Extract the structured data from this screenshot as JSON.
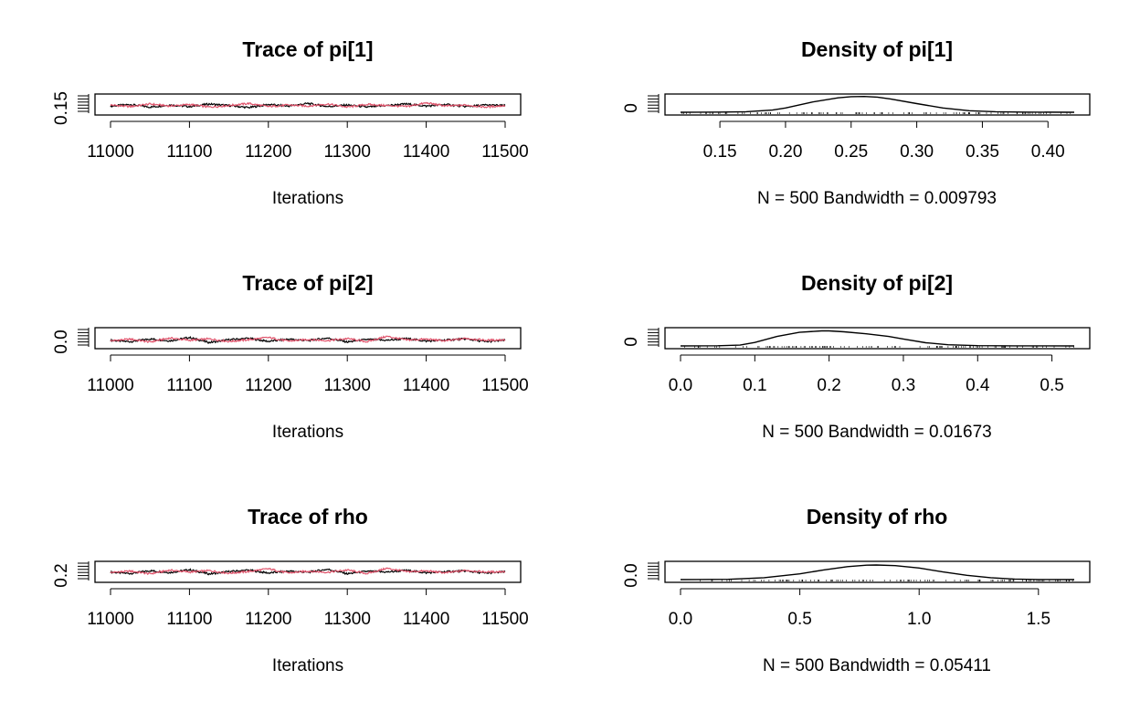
{
  "chart_data": [
    {
      "type": "line",
      "title": "Trace of pi[1]",
      "xlabel": "Iterations",
      "x_ticks": [
        "11000",
        "11100",
        "11200",
        "11300",
        "11400",
        "11500"
      ],
      "xlim": [
        11000,
        11500
      ],
      "y_ticks": [
        "0.15"
      ],
      "ylim": [
        0.12,
        0.42
      ],
      "series_colors": [
        "#000000",
        "#DF536B"
      ],
      "series": [
        {
          "values": [
            0.24,
            0.27,
            0.22,
            0.26,
            0.23,
            0.28,
            0.25,
            0.21,
            0.27,
            0.24,
            0.29,
            0.23,
            0.26,
            0.22,
            0.25,
            0.28,
            0.24,
            0.27,
            0.23,
            0.26,
            0.25
          ]
        },
        {
          "values": [
            0.26,
            0.23,
            0.28,
            0.24,
            0.27,
            0.22,
            0.25,
            0.29,
            0.23,
            0.26,
            0.24,
            0.28,
            0.22,
            0.27,
            0.25,
            0.23,
            0.3,
            0.24,
            0.26,
            0.22,
            0.25
          ]
        }
      ]
    },
    {
      "type": "line",
      "title": "Density of pi[1]",
      "xlabel": "N = 500   Bandwidth = 0.009793",
      "x_ticks": [
        0.15,
        0.2,
        0.25,
        0.3,
        0.35,
        0.4
      ],
      "x_tick_labels": [
        "0.15",
        "0.20",
        "0.25",
        "0.30",
        "0.35",
        "0.40"
      ],
      "xlim": [
        0.12,
        0.42
      ],
      "y_ticks": [
        "0"
      ],
      "x": [
        0.12,
        0.15,
        0.17,
        0.19,
        0.2,
        0.22,
        0.24,
        0.25,
        0.26,
        0.27,
        0.28,
        0.3,
        0.32,
        0.34,
        0.36,
        0.38,
        0.42
      ],
      "y": [
        0.0,
        0.1,
        0.4,
        1.5,
        3.0,
        7.0,
        10.0,
        10.8,
        10.9,
        10.5,
        9.2,
        6.0,
        3.0,
        1.1,
        0.4,
        0.1,
        0.0
      ],
      "ylim": [
        0,
        12
      ]
    },
    {
      "type": "line",
      "title": "Trace of pi[2]",
      "xlabel": "Iterations",
      "x_ticks": [
        "11000",
        "11100",
        "11200",
        "11300",
        "11400",
        "11500"
      ],
      "xlim": [
        11000,
        11500
      ],
      "y_ticks": [
        "0.0"
      ],
      "ylim": [
        0,
        0.55
      ],
      "series_colors": [
        "#000000",
        "#DF536B"
      ],
      "series": [
        {
          "values": [
            0.2,
            0.15,
            0.25,
            0.18,
            0.3,
            0.12,
            0.22,
            0.27,
            0.16,
            0.24,
            0.19,
            0.28,
            0.14,
            0.23,
            0.2,
            0.26,
            0.17,
            0.21,
            0.25,
            0.15,
            0.2
          ]
        },
        {
          "values": [
            0.18,
            0.24,
            0.14,
            0.28,
            0.2,
            0.25,
            0.16,
            0.22,
            0.3,
            0.17,
            0.23,
            0.19,
            0.26,
            0.15,
            0.34,
            0.21,
            0.24,
            0.18,
            0.27,
            0.2,
            0.22
          ]
        }
      ]
    },
    {
      "type": "line",
      "title": "Density of pi[2]",
      "xlabel": "N = 500   Bandwidth = 0.01673",
      "x_ticks": [
        0.0,
        0.1,
        0.2,
        0.3,
        0.4,
        0.5
      ],
      "x_tick_labels": [
        "0.0",
        "0.1",
        "0.2",
        "0.3",
        "0.4",
        "0.5"
      ],
      "xlim": [
        0.0,
        0.53
      ],
      "y_ticks": [
        "0"
      ],
      "x": [
        0.0,
        0.05,
        0.08,
        0.1,
        0.13,
        0.16,
        0.19,
        0.2,
        0.22,
        0.25,
        0.28,
        0.3,
        0.33,
        0.36,
        0.4,
        0.45,
        0.53
      ],
      "y": [
        0.0,
        0.05,
        0.3,
        1.2,
        3.3,
        4.7,
        5.2,
        5.2,
        4.9,
        4.2,
        3.3,
        2.4,
        1.1,
        0.4,
        0.1,
        0.02,
        0.0
      ],
      "ylim": [
        0,
        6
      ]
    },
    {
      "type": "line",
      "title": "Trace of rho",
      "xlabel": "Iterations",
      "x_ticks": [
        "11000",
        "11100",
        "11200",
        "11300",
        "11400",
        "11500"
      ],
      "xlim": [
        11000,
        11500
      ],
      "y_ticks": [
        "0.2"
      ],
      "ylim": [
        0,
        1.65
      ],
      "series_colors": [
        "#000000",
        "#DF536B"
      ],
      "series": [
        {
          "values": [
            0.8,
            0.65,
            0.95,
            0.75,
            1.05,
            0.6,
            0.85,
            1.0,
            0.7,
            0.9,
            0.78,
            1.1,
            0.62,
            0.88,
            0.8,
            0.98,
            0.72,
            0.85,
            0.92,
            0.68,
            0.82
          ]
        },
        {
          "values": [
            0.75,
            0.9,
            0.62,
            1.0,
            0.8,
            0.95,
            0.68,
            0.86,
            1.15,
            0.7,
            0.9,
            0.78,
            1.02,
            0.64,
            1.2,
            0.84,
            0.92,
            0.72,
            0.98,
            0.8,
            0.86
          ]
        }
      ]
    },
    {
      "type": "line",
      "title": "Density of rho",
      "xlabel": "N = 500   Bandwidth = 0.05411",
      "x_ticks": [
        0.0,
        0.5,
        1.0,
        1.5
      ],
      "x_tick_labels": [
        "0.0",
        "0.5",
        "1.0",
        "1.5"
      ],
      "xlim": [
        0.0,
        1.65
      ],
      "y_ticks": [
        "0.0"
      ],
      "x": [
        0.0,
        0.2,
        0.35,
        0.5,
        0.6,
        0.7,
        0.78,
        0.82,
        0.9,
        1.0,
        1.1,
        1.2,
        1.3,
        1.4,
        1.5,
        1.65
      ],
      "y": [
        0.0,
        0.03,
        0.2,
        0.6,
        1.0,
        1.35,
        1.5,
        1.52,
        1.45,
        1.2,
        0.8,
        0.45,
        0.2,
        0.06,
        0.01,
        0.0
      ],
      "ylim": [
        0,
        1.8
      ]
    }
  ]
}
